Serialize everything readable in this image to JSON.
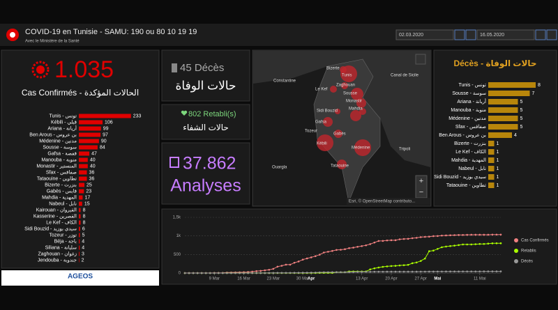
{
  "header": {
    "title": "COVID-19 en Tunisie - SAMU: 190 ou 80 10 19 19",
    "subtitle": "Avec le Ministère de la Santé",
    "date_from": "02.03.2020",
    "date_to": "16.05.2020"
  },
  "cases": {
    "total": "1.035",
    "label": "Cas Confirmés - الحالات المؤكدة"
  },
  "deaths": {
    "total": "45 Décès",
    "label": "حالات الوفاة"
  },
  "recovered": {
    "total": "802 Retabli(s)",
    "label": "حالات الشفاء"
  },
  "tests": {
    "total": "37.862",
    "label": "Analyses"
  },
  "logo": "AGEOS",
  "map": {
    "places": [
      "Bizerte",
      "Tunis",
      "Le Kef",
      "Zaghouan",
      "Sousse",
      "Monastir",
      "Mahdia",
      "Sidi Bouzid",
      "Gafsa",
      "Tozeur",
      "Gabès",
      "Kébili",
      "Médenine",
      "Tataouine",
      "Constantine",
      "Canal de Sicile",
      "Tripoli",
      "Ouargla"
    ],
    "attribution": "Esri, © OpenStreetMap contributo...",
    "zoom_in": "+",
    "zoom_out": "−"
  },
  "chart_data": [
    {
      "type": "bar",
      "orientation": "horizontal",
      "color": "#e00000",
      "xlim": [
        0,
        240
      ],
      "categories": [
        "Tunis - تونس",
        "Kébili - قبلي",
        "Ariana - أريانة",
        "Ben Arous - بن عروس",
        "Médenine - مدنين",
        "Sousse - سوسة",
        "Gafsa - قفصة",
        "Manouba - منوبة",
        "Monastir - المنستير",
        "Sfax - صفاقس",
        "Tataouine - تطاوين",
        "Bizerte - بنزرت",
        "Gabès - قابس",
        "Mahdia - المهدية",
        "Nabeul - نابل",
        "Kairouan - القيروان",
        "Kasserine - القصرين",
        "Le Kef - الكاف",
        "Sidi Bouzid - سيدي بوزيد",
        "Tozeur - توزر",
        "Béja - باجة",
        "Siliana - سليانة",
        "Zaghouan - زغوان",
        "Jendouba - جندوبة"
      ],
      "values": [
        233,
        106,
        99,
        97,
        90,
        84,
        47,
        40,
        40,
        36,
        36,
        25,
        23,
        17,
        15,
        8,
        8,
        8,
        6,
        5,
        4,
        4,
        3,
        2
      ]
    },
    {
      "type": "bar",
      "orientation": "horizontal",
      "title": "Décès - حالات الوفاة",
      "color": "#b8860b",
      "xlim": [
        0,
        8
      ],
      "categories": [
        "Tunis - تونس",
        "Sousse - سوسة",
        "Ariana - أريانة",
        "Manouba - منوبة",
        "Médenine - مدنين",
        "Sfax - صفاقس",
        "Ben Arous - بن عروس",
        "Bizerte - بنزرت",
        "Le Kef - الكاف",
        "Mahdia - المهدية",
        "Nabeul - نابل",
        "Sidi Bouzid - سيدي بوزيد",
        "Tataouine - تطاوين"
      ],
      "values": [
        8,
        7,
        5,
        5,
        5,
        5,
        4,
        1,
        1,
        1,
        1,
        1,
        1
      ]
    },
    {
      "type": "line",
      "ylim": [
        0,
        1500
      ],
      "yticks": [
        0,
        500,
        {
          "value": 1000,
          "label": "1k"
        },
        {
          "value": 1500,
          "label": "1,5k"
        }
      ],
      "grid": true,
      "categories": [
        "2 Mar",
        "3 Mar",
        "4 Mar",
        "5 Mar",
        "6 Mar",
        "7 Mar",
        "8 Mar",
        "9 Mar",
        "10 Mar",
        "11 Mar",
        "12 Mar",
        "13 Mar",
        "14 Mar",
        "15 Mar",
        "16 Mar",
        "17 Mar",
        "18 Mar",
        "19 Mar",
        "20 Mar",
        "21 Mar",
        "22 Mar",
        "23 Mar",
        "24 Mar",
        "25 Mar",
        "26 Mar",
        "27 Mar",
        "28 Mar",
        "29 Mar",
        "30 Mar",
        "31 Mar",
        "1 Apr",
        "2 Apr",
        "3 Apr",
        "4 Apr",
        "5 Apr",
        "6 Apr",
        "7 Apr",
        "8 Apr",
        "9 Apr",
        "10 Apr",
        "11 Apr",
        "12 Apr",
        "13 Apr",
        "14 Apr",
        "15 Apr",
        "16 Apr",
        "17 Apr",
        "18 Apr",
        "19 Apr",
        "20 Apr",
        "21 Apr",
        "22 Apr",
        "23 Apr",
        "24 Apr",
        "25 Apr",
        "26 Apr",
        "27 Apr",
        "28 Apr",
        "29 Apr",
        "30 Apr",
        "1 Mai",
        "2 Mai",
        "3 Mai",
        "4 Mai",
        "5 Mai",
        "6 Mai",
        "7 Mai",
        "8 Mai",
        "9 Mai",
        "10 Mai",
        "11 Mai",
        "12 Mai",
        "13 Mai",
        "14 Mai",
        "15 Mai",
        "16 Mai"
      ],
      "xticks": [
        "9 Mar",
        "16 Mar",
        "23 Mar",
        "30 Mar",
        {
          "value": "1 Apr",
          "label": "Apr"
        },
        "13 Apr",
        "20 Apr",
        "27 Apr",
        {
          "value": "1 Mai",
          "label": "Mai"
        },
        "11 Mai"
      ],
      "series": [
        {
          "name": "Cas Confirmés",
          "color": "#f08080",
          "values": [
            1,
            1,
            1,
            1,
            1,
            1,
            2,
            5,
            5,
            7,
            13,
            16,
            18,
            20,
            24,
            29,
            39,
            54,
            60,
            75,
            89,
            114,
            173,
            197,
            227,
            227,
            278,
            312,
            362,
            394,
            423,
            455,
            495,
            553,
            574,
            596,
            623,
            628,
            643,
            671,
            685,
            707,
            726,
            747,
            780,
            822,
            864,
            866,
            879,
            884,
            884,
            909,
            918,
            922,
            939,
            949,
            967,
            975,
            980,
            994,
            998,
            1009,
            1013,
            1018,
            1022,
            1025,
            1026,
            1030,
            1032,
            1032,
            1032,
            1032,
            1032,
            1035,
            1035,
            1035
          ]
        },
        {
          "name": "Retablis",
          "color": "#aaff00",
          "values": [
            0,
            0,
            0,
            0,
            0,
            0,
            0,
            0,
            0,
            0,
            1,
            1,
            1,
            1,
            1,
            1,
            1,
            1,
            1,
            1,
            1,
            2,
            2,
            2,
            2,
            2,
            2,
            2,
            2,
            2,
            2,
            2,
            5,
            5,
            5,
            5,
            25,
            25,
            25,
            43,
            43,
            43,
            43,
            43,
            100,
            127,
            150,
            168,
            180,
            190,
            195,
            206,
            213,
            222,
            266,
            285,
            326,
            391,
            589,
            605,
            651,
            696,
            714,
            727,
            739,
            753,
            770,
            770,
            770,
            777,
            784,
            784,
            793,
            800,
            802,
            802
          ]
        },
        {
          "name": "Décès",
          "color": "#999999",
          "values": [
            0,
            0,
            0,
            0,
            0,
            0,
            0,
            0,
            0,
            0,
            0,
            0,
            0,
            0,
            0,
            0,
            1,
            1,
            1,
            1,
            3,
            3,
            5,
            6,
            6,
            6,
            8,
            8,
            10,
            10,
            12,
            14,
            18,
            22,
            22,
            24,
            25,
            25,
            25,
            25,
            28,
            31,
            31,
            34,
            35,
            37,
            37,
            37,
            38,
            38,
            38,
            38,
            38,
            38,
            38,
            38,
            39,
            40,
            41,
            41,
            42,
            42,
            43,
            43,
            43,
            43,
            44,
            44,
            44,
            44,
            44,
            45,
            45,
            45,
            45,
            45
          ]
        }
      ]
    }
  ]
}
